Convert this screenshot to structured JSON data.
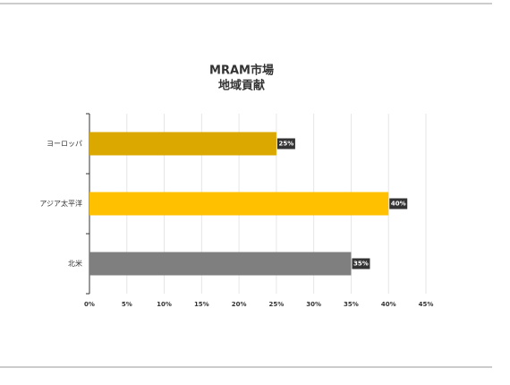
{
  "chart_data": {
    "type": "hbar",
    "title": [
      "MRAM市場",
      "地域貢献"
    ],
    "categories": [
      "ヨーロッパ",
      "アジア太平洋",
      "北米"
    ],
    "values": [
      25,
      40,
      35
    ],
    "value_labels": [
      "25%",
      "40%",
      "35%"
    ],
    "colors": [
      "#dba800",
      "#ffc000",
      "#7f7f7f"
    ],
    "xlim": [
      0,
      45
    ],
    "xticks": [
      {
        "value": 0,
        "label": "0%"
      },
      {
        "value": 5,
        "label": "5%"
      },
      {
        "value": 10,
        "label": "10%"
      },
      {
        "value": 15,
        "label": "15%"
      },
      {
        "value": 20,
        "label": "20%"
      },
      {
        "value": 25,
        "label": "25%"
      },
      {
        "value": 30,
        "label": "30%"
      },
      {
        "value": 35,
        "label": "35%"
      },
      {
        "value": 40,
        "label": "40%"
      },
      {
        "value": 45,
        "label": "45%"
      }
    ],
    "grid": true
  }
}
